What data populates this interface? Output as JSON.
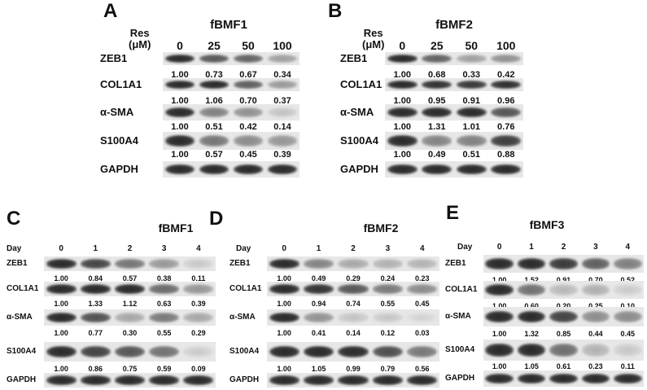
{
  "panels": [
    {
      "letter": "A",
      "title": "fBMF1",
      "header_label": "Res\n(μM)",
      "columns": [
        "0",
        "25",
        "50",
        "100"
      ],
      "rows": [
        {
          "label": "ZEB1",
          "values": [
            "1.00",
            "0.73",
            "0.67",
            "0.34"
          ]
        },
        {
          "label": "COL1A1",
          "values": [
            "1.00",
            "1.06",
            "0.70",
            "0.37"
          ]
        },
        {
          "label": "α-SMA",
          "values": [
            "1.00",
            "0.51",
            "0.42",
            "0.14"
          ]
        },
        {
          "label": "S100A4",
          "values": [
            "1.00",
            "0.57",
            "0.45",
            "0.39"
          ]
        },
        {
          "label": "GAPDH",
          "values": []
        }
      ]
    },
    {
      "letter": "B",
      "title": "fBMF2",
      "header_label": "Res\n(μM)",
      "columns": [
        "0",
        "25",
        "50",
        "100"
      ],
      "rows": [
        {
          "label": "ZEB1",
          "values": [
            "1.00",
            "0.68",
            "0.33",
            "0.42"
          ]
        },
        {
          "label": "COL1A1",
          "values": [
            "1.00",
            "0.95",
            "0.91",
            "0.96"
          ]
        },
        {
          "label": "α-SMA",
          "values": [
            "1.00",
            "1.31",
            "1.01",
            "0.76"
          ]
        },
        {
          "label": "S100A4",
          "values": [
            "1.00",
            "0.49",
            "0.51",
            "0.88"
          ]
        },
        {
          "label": "GAPDH",
          "values": []
        }
      ]
    },
    {
      "letter": "C",
      "title": "fBMF1",
      "header_label": "Day",
      "columns": [
        "0",
        "1",
        "2",
        "3",
        "4"
      ],
      "rows": [
        {
          "label": "ZEB1",
          "values": [
            "1.00",
            "0.84",
            "0.57",
            "0.38",
            "0.11"
          ]
        },
        {
          "label": "COL1A1",
          "values": [
            "1.00",
            "1.33",
            "1.12",
            "0.63",
            "0.39"
          ]
        },
        {
          "label": "α-SMA",
          "values": [
            "1.00",
            "0.77",
            "0.30",
            "0.55",
            "0.29"
          ]
        },
        {
          "label": "S100A4",
          "values": [
            "1.00",
            "0.86",
            "0.75",
            "0.59",
            "0.09"
          ]
        },
        {
          "label": "GAPDH",
          "values": []
        }
      ]
    },
    {
      "letter": "D",
      "title": "fBMF2",
      "header_label": "Day",
      "columns": [
        "0",
        "1",
        "2",
        "3",
        "4"
      ],
      "rows": [
        {
          "label": "ZEB1",
          "values": [
            "1.00",
            "0.49",
            "0.29",
            "0.24",
            "0.23"
          ]
        },
        {
          "label": "COL1A1",
          "values": [
            "1.00",
            "0.94",
            "0.74",
            "0.55",
            "0.45"
          ]
        },
        {
          "label": "α-SMA",
          "values": [
            "1.00",
            "0.41",
            "0.14",
            "0.12",
            "0.03"
          ]
        },
        {
          "label": "S100A4",
          "values": [
            "1.00",
            "1.05",
            "0.99",
            "0.79",
            "0.56"
          ]
        },
        {
          "label": "GAPDH",
          "values": []
        }
      ]
    },
    {
      "letter": "E",
      "title": "fBMF3",
      "header_label": "Day",
      "columns": [
        "0",
        "1",
        "2",
        "3",
        "4"
      ],
      "rows": [
        {
          "label": "ZEB1",
          "values": [
            "1.00",
            "1.52",
            "0.91",
            "0.70",
            "0.52"
          ]
        },
        {
          "label": "COL1A1",
          "values": [
            "1.00",
            "0.60",
            "0.20",
            "0.25",
            "0.10"
          ]
        },
        {
          "label": "α-SMA",
          "values": [
            "1.00",
            "1.32",
            "0.85",
            "0.44",
            "0.45"
          ]
        },
        {
          "label": "S100A4",
          "values": [
            "1.00",
            "1.05",
            "0.61",
            "0.23",
            "0.11"
          ]
        },
        {
          "label": "GAPDH",
          "values": []
        }
      ]
    }
  ]
}
